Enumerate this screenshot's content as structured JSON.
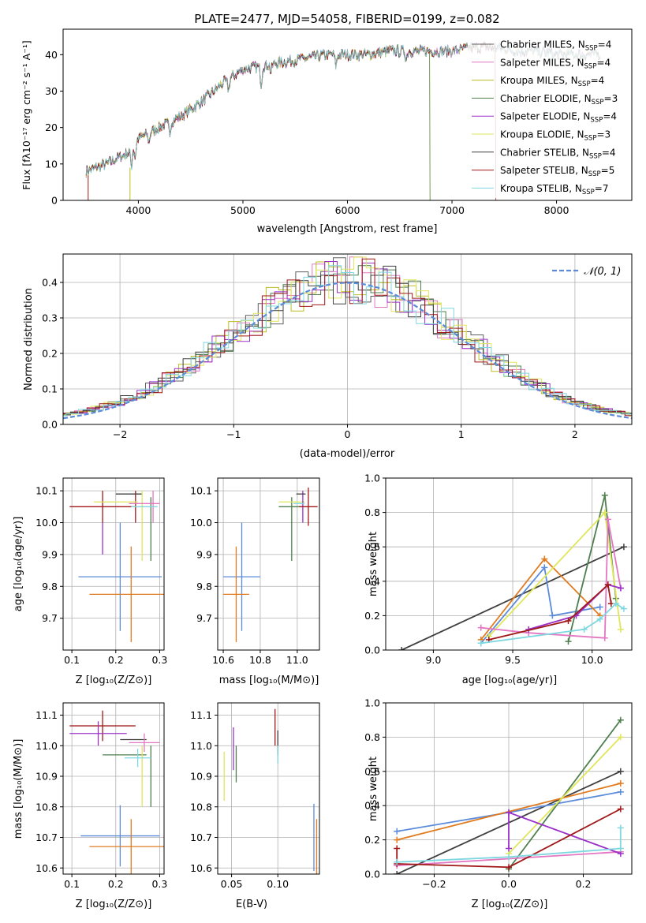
{
  "figure": {
    "title": "PLATE=2477, MJD=54058, FIBERID=0199, z=0.082"
  },
  "colors": {
    "chabrier_miles": "#5f5f5f",
    "salpeter_miles": "#e377c2",
    "kroupa_miles": "#bcbd22",
    "chabrier_elodie": "#4f7f4f",
    "salpeter_elodie": "#9b30c9",
    "kroupa_elodie": "#dfe65a",
    "chabrier_stelib": "#404040",
    "salpeter_stelib": "#a01818",
    "kroupa_stelib": "#7fd8e0",
    "blue": "#5b8bd9",
    "orange": "#e07b20",
    "dashed_normal": "#5b8bd9"
  },
  "chart_data": [
    {
      "id": "spectrum",
      "type": "line",
      "xlabel": "wavelength [Angstrom, rest frame]",
      "ylabel": "Flux [fλ10⁻¹⁷ erg cm⁻² s⁻¹ A⁻¹]",
      "xlim": [
        3280,
        8720
      ],
      "ylim": [
        0,
        47
      ],
      "xticks": [
        "4000",
        "5000",
        "6000",
        "7000",
        "8000"
      ],
      "yticks": [
        "0",
        "10",
        "20",
        "30",
        "40"
      ],
      "grid": false,
      "legend_position": "top-right",
      "legend": [
        "Chabrier MILES, N_SSP=4",
        "Salpeter MILES, N_SSP=4",
        "Kroupa MILES, N_SSP=4",
        "Chabrier ELODIE, N_SSP=3",
        "Salpeter ELODIE, N_SSP=4",
        "Kroupa ELODIE, N_SSP=3",
        "Chabrier STELIB, N_SSP=4",
        "Salpeter STELIB, N_SSP=5",
        "Kroupa STELIB, N_SSP=7"
      ],
      "continuum": [
        [
          3500,
          8
        ],
        [
          3700,
          10
        ],
        [
          3900,
          13
        ],
        [
          4000,
          17
        ],
        [
          4200,
          20
        ],
        [
          4400,
          23
        ],
        [
          4600,
          27
        ],
        [
          4800,
          32
        ],
        [
          5000,
          36
        ],
        [
          5200,
          37
        ],
        [
          5400,
          38
        ],
        [
          5600,
          39
        ],
        [
          5800,
          40
        ],
        [
          6000,
          40
        ],
        [
          6200,
          40
        ],
        [
          6400,
          41
        ],
        [
          6600,
          41
        ],
        [
          6800,
          41
        ],
        [
          7000,
          41
        ],
        [
          7200,
          42
        ],
        [
          7400,
          42
        ],
        [
          7600,
          41
        ],
        [
          7800,
          41
        ],
        [
          8000,
          40
        ],
        [
          8200,
          40
        ],
        [
          8420,
          40
        ]
      ]
    },
    {
      "id": "residual-histogram",
      "type": "histogram",
      "xlabel": "(data-model)/error",
      "ylabel": "Normed distribution",
      "xlim": [
        -2.5,
        2.5
      ],
      "ylim": [
        0,
        0.48
      ],
      "xticks": [
        "−2",
        "−1",
        "0",
        "1",
        "2"
      ],
      "yticks": [
        "0.0",
        "0.1",
        "0.2",
        "0.3",
        "0.4"
      ],
      "grid": true,
      "legend_position": "top-right",
      "legend": [
        "𝒩(0, 1)"
      ]
    },
    {
      "id": "age-vs-Z",
      "type": "scatter",
      "xlabel": "Z [log₁₀(Z/Z⊙)]",
      "ylabel": "age  [log₁₀(age/yr)]",
      "xlim": [
        0.08,
        0.31
      ],
      "ylim": [
        9.6,
        10.14
      ],
      "xticks": [
        "0.1",
        "0.2",
        "0.3"
      ],
      "yticks": [
        "9.7",
        "9.8",
        "9.9",
        "10.0",
        "10.1"
      ],
      "grid": true,
      "points": [
        {
          "x": 0.21,
          "y": 9.83,
          "xerr": 0.095,
          "yerr": 0.17,
          "color": "#5b8bd9"
        },
        {
          "x": 0.235,
          "y": 9.775,
          "xerr": 0.095,
          "yerr": 0.15,
          "color": "#e07b20"
        },
        {
          "x": 0.17,
          "y": 10.05,
          "xerr": 0.075,
          "yerr": 0.05,
          "color": "#a01818"
        },
        {
          "x": 0.17,
          "y": 9.95,
          "xerr": 0,
          "yerr": 0.05,
          "color": "#9b30c9"
        },
        {
          "x": 0.245,
          "y": 10.05,
          "xerr": 0,
          "yerr": 0.05,
          "color": "#a01818"
        },
        {
          "x": 0.23,
          "y": 10.09,
          "xerr": 0.03,
          "yerr": 0,
          "color": "#404040"
        },
        {
          "x": 0.26,
          "y": 9.99,
          "xerr": 0,
          "yerr": 0.11,
          "color": "#dfe65a"
        },
        {
          "x": 0.28,
          "y": 9.98,
          "xerr": 0,
          "yerr": 0.1,
          "color": "#4f7f4f"
        },
        {
          "x": 0.285,
          "y": 10.05,
          "xerr": 0,
          "yerr": 0.05,
          "color": "#e377c2"
        },
        {
          "x": 0.265,
          "y": 10.06,
          "xerr": 0.035,
          "yerr": 0,
          "color": "#e377c2"
        },
        {
          "x": 0.2,
          "y": 10.065,
          "xerr": 0.05,
          "yerr": 0,
          "color": "#dfe65a"
        },
        {
          "x": 0.265,
          "y": 10.05,
          "xerr": 0.03,
          "yerr": 0,
          "color": "#7fd8e0"
        }
      ]
    },
    {
      "id": "age-vs-mass",
      "type": "scatter",
      "xlabel": "mass [log₁₀(M/M⊙)]",
      "xlim": [
        10.57,
        11.12
      ],
      "ylim": [
        9.6,
        10.14
      ],
      "xticks": [
        "10.6",
        "10.8",
        "11.0"
      ],
      "yticks": [
        "9.7",
        "9.8",
        "9.9",
        "10.0",
        "10.1"
      ],
      "grid": true,
      "points": [
        {
          "x": 10.7,
          "y": 9.83,
          "xerr": 0.1,
          "yerr": 0.17,
          "color": "#5b8bd9"
        },
        {
          "x": 10.67,
          "y": 9.775,
          "xerr": 0.07,
          "yerr": 0.15,
          "color": "#e07b20"
        },
        {
          "x": 10.97,
          "y": 9.98,
          "xerr": 0,
          "yerr": 0.1,
          "color": "#4f7f4f"
        },
        {
          "x": 10.97,
          "y": 10.065,
          "xerr": 0.07,
          "yerr": 0,
          "color": "#dfe65a"
        },
        {
          "x": 10.96,
          "y": 10.05,
          "xerr": 0.06,
          "yerr": 0,
          "color": "#4f7f4f"
        },
        {
          "x": 11.03,
          "y": 10.05,
          "xerr": 0,
          "yerr": 0.05,
          "color": "#9b30c9"
        },
        {
          "x": 11.06,
          "y": 10.05,
          "xerr": 0.05,
          "yerr": 0.06,
          "color": "#a01818"
        },
        {
          "x": 11.02,
          "y": 10.09,
          "xerr": 0.025,
          "yerr": 0,
          "color": "#404040"
        },
        {
          "x": 11.01,
          "y": 10.06,
          "xerr": 0.03,
          "yerr": 0,
          "color": "#7fd8e0"
        }
      ]
    },
    {
      "id": "mass-weight-vs-age",
      "type": "line",
      "xlabel": "age  [log₁₀(age/yr)]",
      "ylabel": "mass weight",
      "xlim": [
        8.7,
        10.25
      ],
      "ylim": [
        0,
        1
      ],
      "xticks": [
        "9.0",
        "9.5",
        "10.0"
      ],
      "yticks": [
        "0.0",
        "0.2",
        "0.4",
        "0.6",
        "0.8",
        "1.0"
      ],
      "grid": true,
      "series": [
        {
          "color": "#404040",
          "x": [
            8.8,
            10.2
          ],
          "y": [
            0.0,
            0.6
          ]
        },
        {
          "color": "#5b8bd9",
          "x": [
            9.3,
            9.7,
            9.75,
            10.05
          ],
          "y": [
            0.04,
            0.48,
            0.2,
            0.25
          ]
        },
        {
          "color": "#e07b20",
          "x": [
            9.3,
            9.7,
            10.05
          ],
          "y": [
            0.06,
            0.53,
            0.2
          ]
        },
        {
          "color": "#4f7f4f",
          "x": [
            9.85,
            10.08,
            10.15
          ],
          "y": [
            0.05,
            0.9,
            0.3
          ]
        },
        {
          "color": "#dfe65a",
          "x": [
            9.35,
            10.08,
            10.18
          ],
          "y": [
            0.08,
            0.8,
            0.12
          ]
        },
        {
          "color": "#e377c2",
          "x": [
            9.3,
            9.6,
            10.08,
            10.1,
            10.18
          ],
          "y": [
            0.13,
            0.1,
            0.07,
            0.76,
            0.36
          ]
        },
        {
          "color": "#9b30c9",
          "x": [
            9.6,
            9.9,
            10.1,
            10.18
          ],
          "y": [
            0.12,
            0.2,
            0.38,
            0.36
          ]
        },
        {
          "color": "#a01818",
          "x": [
            9.35,
            9.85,
            10.1,
            10.12
          ],
          "y": [
            0.06,
            0.17,
            0.38,
            0.27
          ]
        },
        {
          "color": "#7fd8e0",
          "x": [
            9.3,
            9.95,
            10.05,
            10.15,
            10.2
          ],
          "y": [
            0.04,
            0.12,
            0.18,
            0.27,
            0.24
          ]
        }
      ]
    },
    {
      "id": "mass-vs-Z",
      "type": "scatter",
      "xlabel": "Z [log₁₀(Z/Z⊙)]",
      "ylabel": "mass [log₁₀(M/M⊙)]",
      "xlim": [
        0.08,
        0.31
      ],
      "ylim": [
        10.58,
        11.14
      ],
      "xticks": [
        "0.1",
        "0.2",
        "0.3"
      ],
      "yticks": [
        "10.6",
        "10.7",
        "10.8",
        "10.9",
        "11.0",
        "11.1"
      ],
      "grid": true,
      "points": [
        {
          "x": 0.21,
          "y": 10.705,
          "xerr": 0.09,
          "yerr": 0.1,
          "color": "#5b8bd9"
        },
        {
          "x": 0.235,
          "y": 10.67,
          "xerr": 0.095,
          "yerr": 0.09,
          "color": "#e07b20"
        },
        {
          "x": 0.17,
          "y": 11.065,
          "xerr": 0.075,
          "yerr": 0.05,
          "color": "#a01818"
        },
        {
          "x": 0.16,
          "y": 11.04,
          "xerr": 0.065,
          "yerr": 0.04,
          "color": "#9b30c9"
        },
        {
          "x": 0.24,
          "y": 11.02,
          "xerr": 0.03,
          "yerr": 0,
          "color": "#404040"
        },
        {
          "x": 0.265,
          "y": 11.01,
          "xerr": 0.035,
          "yerr": 0.03,
          "color": "#e377c2"
        },
        {
          "x": 0.22,
          "y": 10.97,
          "xerr": 0.05,
          "yerr": 0,
          "color": "#4f7f4f"
        },
        {
          "x": 0.26,
          "y": 10.9,
          "xerr": 0,
          "yerr": 0.1,
          "color": "#dfe65a"
        },
        {
          "x": 0.28,
          "y": 10.9,
          "xerr": 0,
          "yerr": 0.1,
          "color": "#4f7f4f"
        },
        {
          "x": 0.25,
          "y": 10.96,
          "xerr": 0.03,
          "yerr": 0.03,
          "color": "#7fd8e0"
        }
      ]
    },
    {
      "id": "mass-vs-EBV",
      "type": "scatter",
      "xlabel": "E(B-V)",
      "xlim": [
        0.035,
        0.145
      ],
      "ylim": [
        10.58,
        11.14
      ],
      "xticks": [
        "0.05",
        "0.10"
      ],
      "yticks": [
        "10.6",
        "10.7",
        "10.8",
        "10.9",
        "11.0",
        "11.1"
      ],
      "grid": true,
      "points": [
        {
          "x": 0.042,
          "y": 10.9,
          "yerr": 0.08,
          "color": "#dfe65a"
        },
        {
          "x": 0.052,
          "y": 10.99,
          "yerr": 0.07,
          "color": "#9b30c9"
        },
        {
          "x": 0.055,
          "y": 10.94,
          "yerr": 0.06,
          "color": "#4f7f4f"
        },
        {
          "x": 0.097,
          "y": 11.06,
          "yerr": 0.06,
          "color": "#a01818"
        },
        {
          "x": 0.1,
          "y": 11.01,
          "yerr": 0.04,
          "color": "#404040"
        },
        {
          "x": 0.1,
          "y": 10.97,
          "yerr": 0.03,
          "color": "#7fd8e0"
        },
        {
          "x": 0.139,
          "y": 10.7,
          "yerr": 0.11,
          "color": "#5b8bd9"
        },
        {
          "x": 0.142,
          "y": 10.67,
          "yerr": 0.09,
          "color": "#e07b20"
        }
      ]
    },
    {
      "id": "mass-weight-vs-Z",
      "type": "line",
      "xlabel": "Z [log₁₀(Z/Z⊙)]",
      "ylabel": "mass weight",
      "xlim": [
        -0.33,
        0.33
      ],
      "ylim": [
        0,
        1
      ],
      "xticks": [
        "−0.2",
        "0.0",
        "0.2"
      ],
      "yticks": [
        "0.0",
        "0.2",
        "0.4",
        "0.6",
        "0.8",
        "1.0"
      ],
      "grid": true,
      "series": [
        {
          "color": "#404040",
          "x": [
            -0.3,
            0.3
          ],
          "y": [
            0.0,
            0.6
          ]
        },
        {
          "color": "#5b8bd9",
          "x": [
            -0.3,
            0.0,
            0.3
          ],
          "y": [
            0.25,
            0.36,
            0.48
          ]
        },
        {
          "color": "#e07b20",
          "x": [
            -0.3,
            0.3
          ],
          "y": [
            0.2,
            0.53
          ]
        },
        {
          "color": "#4f7f4f",
          "x": [
            0.0,
            0.3
          ],
          "y": [
            0.03,
            0.9
          ]
        },
        {
          "color": "#dfe65a",
          "x": [
            0.0,
            0.3
          ],
          "y": [
            0.12,
            0.8
          ]
        },
        {
          "color": "#e377c2",
          "x": [
            -0.3,
            0.3
          ],
          "y": [
            0.05,
            0.13
          ]
        },
        {
          "color": "#9b30c9",
          "x": [
            0.0,
            0.0,
            0.3
          ],
          "y": [
            0.15,
            0.36,
            0.12
          ]
        },
        {
          "color": "#a01818",
          "x": [
            -0.3,
            -0.3,
            0.0,
            0.3
          ],
          "y": [
            0.15,
            0.06,
            0.04,
            0.38
          ]
        },
        {
          "color": "#7fd8e0",
          "x": [
            -0.3,
            0.0,
            0.3,
            0.3
          ],
          "y": [
            0.07,
            0.1,
            0.15,
            0.27
          ]
        }
      ]
    }
  ]
}
